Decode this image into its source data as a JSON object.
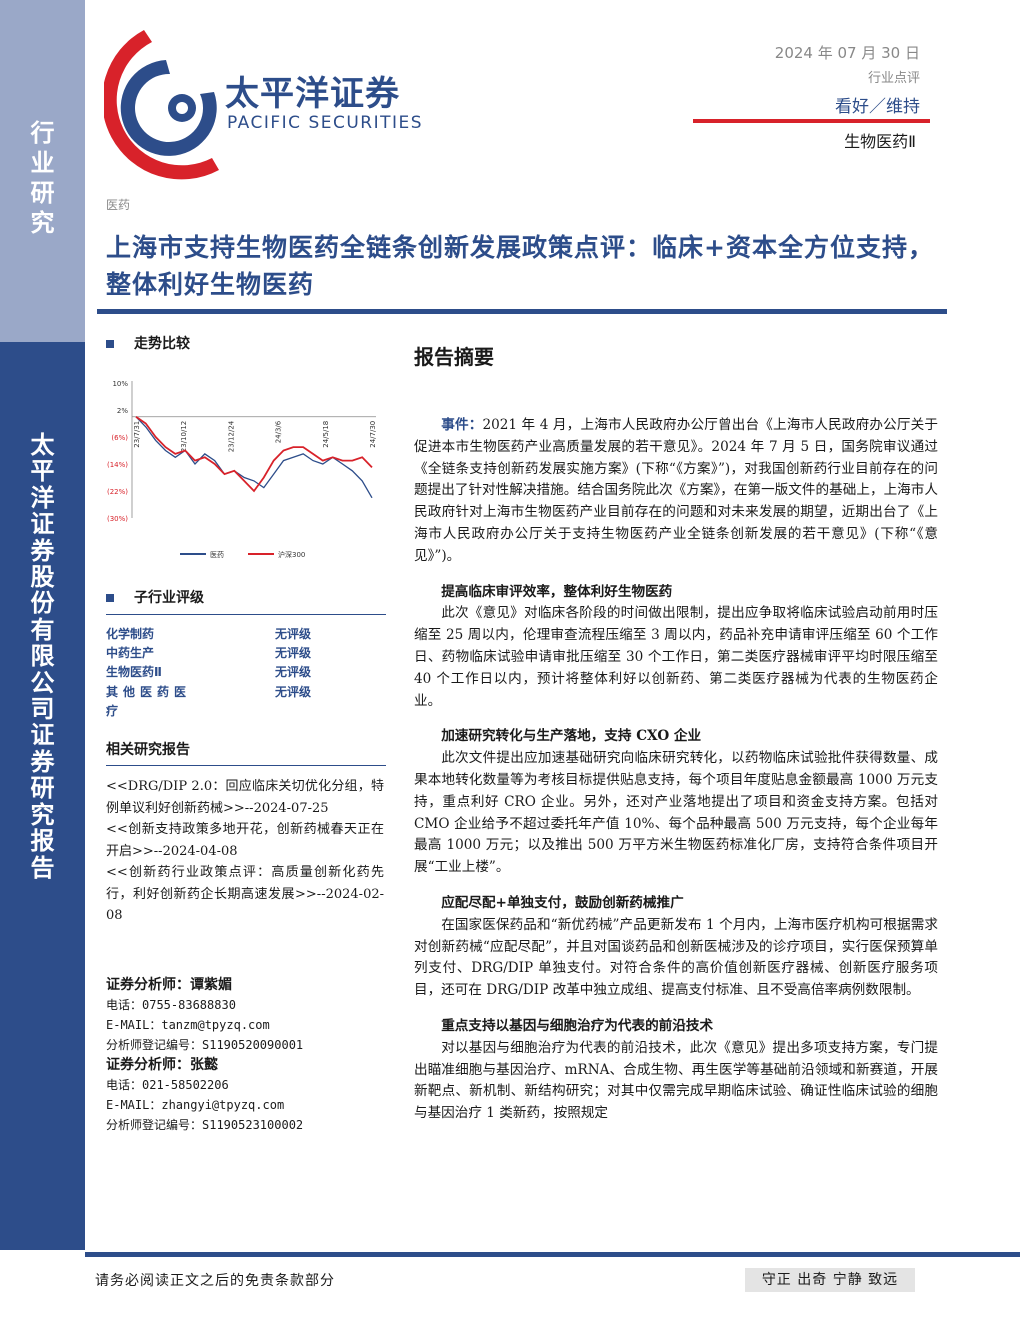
{
  "sidebar": {
    "top_label": "行业研究",
    "bottom_label": "太平洋证券股份有限公司证券研究报告"
  },
  "header": {
    "logo_cn": "太平洋证券",
    "logo_en": "PACIFIC SECURITIES",
    "date": "2024 年 07 月 30 日",
    "report_type": "行业点评",
    "rating": "看好／维持",
    "industry": "生物医药Ⅱ",
    "brand_colors": {
      "blue": "#2d4d8a",
      "red": "#d8222a"
    }
  },
  "category": "医药",
  "title": "上海市支持生物医药全链条创新发展政策点评：临床+资本全方位支持，整体利好生物医药",
  "trend": {
    "heading": "走势比较",
    "chart_data": {
      "type": "line",
      "title": "",
      "xlabel": "",
      "ylabel": "",
      "ylim": [
        -30,
        10
      ],
      "y_ticks": [
        "10%",
        "2%",
        "(6%)",
        "(14%)",
        "(22%)",
        "(30%)"
      ],
      "x_ticks": [
        "23/7/31",
        "23/10/12",
        "23/12/24",
        "24/3/6",
        "24/5/18",
        "24/7/30"
      ],
      "legend_position": "bottom",
      "series": [
        {
          "name": "医药",
          "color": "#2d4d8a",
          "values": [
            0,
            -3,
            -7,
            -10,
            -12,
            -10,
            -14,
            -11,
            -13,
            -17,
            -16,
            -18,
            -19,
            -21,
            -17,
            -13,
            -12,
            -11,
            -13,
            -14,
            -12,
            -14,
            -16,
            -19,
            -24
          ]
        },
        {
          "name": "沪深300",
          "color": "#d8222a",
          "values": [
            0,
            -2,
            -6,
            -9,
            -11,
            -10,
            -13,
            -12,
            -14,
            -17,
            -16,
            -19,
            -22,
            -18,
            -13,
            -10,
            -9,
            -9,
            -11,
            -13,
            -12,
            -13,
            -13,
            -12,
            -15
          ]
        }
      ]
    }
  },
  "sub_industry": {
    "heading": "子行业评级",
    "rows": [
      {
        "name": "化学制药",
        "rating": "无评级"
      },
      {
        "name": "中药生产",
        "rating": "无评级"
      },
      {
        "name": "生物医药Ⅱ",
        "rating": "无评级"
      },
      {
        "name": "其他医药医疗",
        "rating": "无评级"
      }
    ]
  },
  "related": {
    "heading": "相关研究报告",
    "items": [
      "<<DRG/DIP 2.0：回应临床关切优化分组，特例单议利好创新药械>>--2024-07-25",
      "<<创新支持政策多地开花，创新药械春天正在开启>>--2024-04-08",
      "<<创新药行业政策点评：高质量创新化药先行，利好创新药企长期高速发展>>--2024-02-08"
    ]
  },
  "analysts": [
    {
      "name": "证券分析师：谭紫媚",
      "phone": "电话：0755-83688830",
      "email": "E-MAIL：tanzm@tpyzq.com",
      "reg": "分析师登记编号：S1190520090001"
    },
    {
      "name": "证券分析师：张懿",
      "phone": "电话：021-58502206",
      "email": "E-MAIL：zhangyi@tpyzq.com",
      "reg": "分析师登记编号：S1190523100002"
    }
  ],
  "summary": {
    "heading": "报告摘要",
    "event_lead": "事件：",
    "event_text": "2021 年 4 月，上海市人民政府办公厅曾出台《上海市人民政府办公厅关于促进本市生物医药产业高质量发展的若干意见》。2024 年 7 月 5 日，国务院审议通过《全链条支持创新药发展实施方案》(下称“《方案》”)，对我国创新药行业目前存在的问题提出了针对性解决措施。结合国务院此次《方案》，在第一版文件的基础上，上海市人民政府针对上海市生物医药产业目前存在的问题和对未来发展的期望，近期出台了《上海市人民政府办公厅关于支持生物医药产业全链条创新发展的若干意见》(下称“《意见》”)。",
    "sections": [
      {
        "heading": "提高临床审评效率，整体利好生物医药",
        "text": "此次《意见》对临床各阶段的时间做出限制，提出应争取将临床试验启动前用时压缩至 25 周以内，伦理审查流程压缩至 3 周以内，药品补充申请审评压缩至 60 个工作日、药物临床试验申请审批压缩至 30 个工作日，第二类医疗器械审评平均时限压缩至 40 个工作日以内，预计将整体利好以创新药、第二类医疗器械为代表的生物医药企业。"
      },
      {
        "heading": "加速研究转化与生产落地，支持 CXO 企业",
        "text": "此次文件提出应加速基础研究向临床研究转化，以药物临床试验批件获得数量、成果本地转化数量等为考核目标提供贴息支持，每个项目年度贴息金额最高 1000 万元支持，重点利好 CRO 企业。另外，还对产业落地提出了项目和资金支持方案。包括对 CMO 企业给予不超过委托年产值 10%、每个品种最高 500 万元支持，每个企业每年最高 1000 万元；以及推出 500 万平方米生物医药标准化厂房，支持符合条件项目开展“工业上楼”。"
      },
      {
        "heading": "应配尽配+单独支付，鼓励创新药械推广",
        "text": "在国家医保药品和“新优药械”产品更新发布 1 个月内，上海市医疗机构可根据需求对创新药械“应配尽配”，并且对国谈药品和创新医械涉及的诊疗项目，实行医保预算单列支付、DRG/DIP 单独支付。对符合条件的高价值创新医疗器械、创新医疗服务项目，还可在 DRG/DIP 改革中独立成组、提高支付标准、且不受高倍率病例数限制。"
      },
      {
        "heading": "重点支持以基因与细胞治疗为代表的前沿技术",
        "text": "对以基因与细胞治疗为代表的前沿技术，此次《意见》提出多项支持方案，专门提出瞄准细胞与基因治疗、mRNA、合成生物、再生医学等基础前沿领域和新赛道，开展新靶点、新机制、新结构研究；对其中仅需完成早期临床试验、确证性临床试验的细胞与基因治疗 1 类新药，按照规定"
      }
    ]
  },
  "footer": {
    "disclaimer": "请务必阅读正文之后的免责条款部分",
    "motto": "守正 出奇 宁静 致远"
  }
}
